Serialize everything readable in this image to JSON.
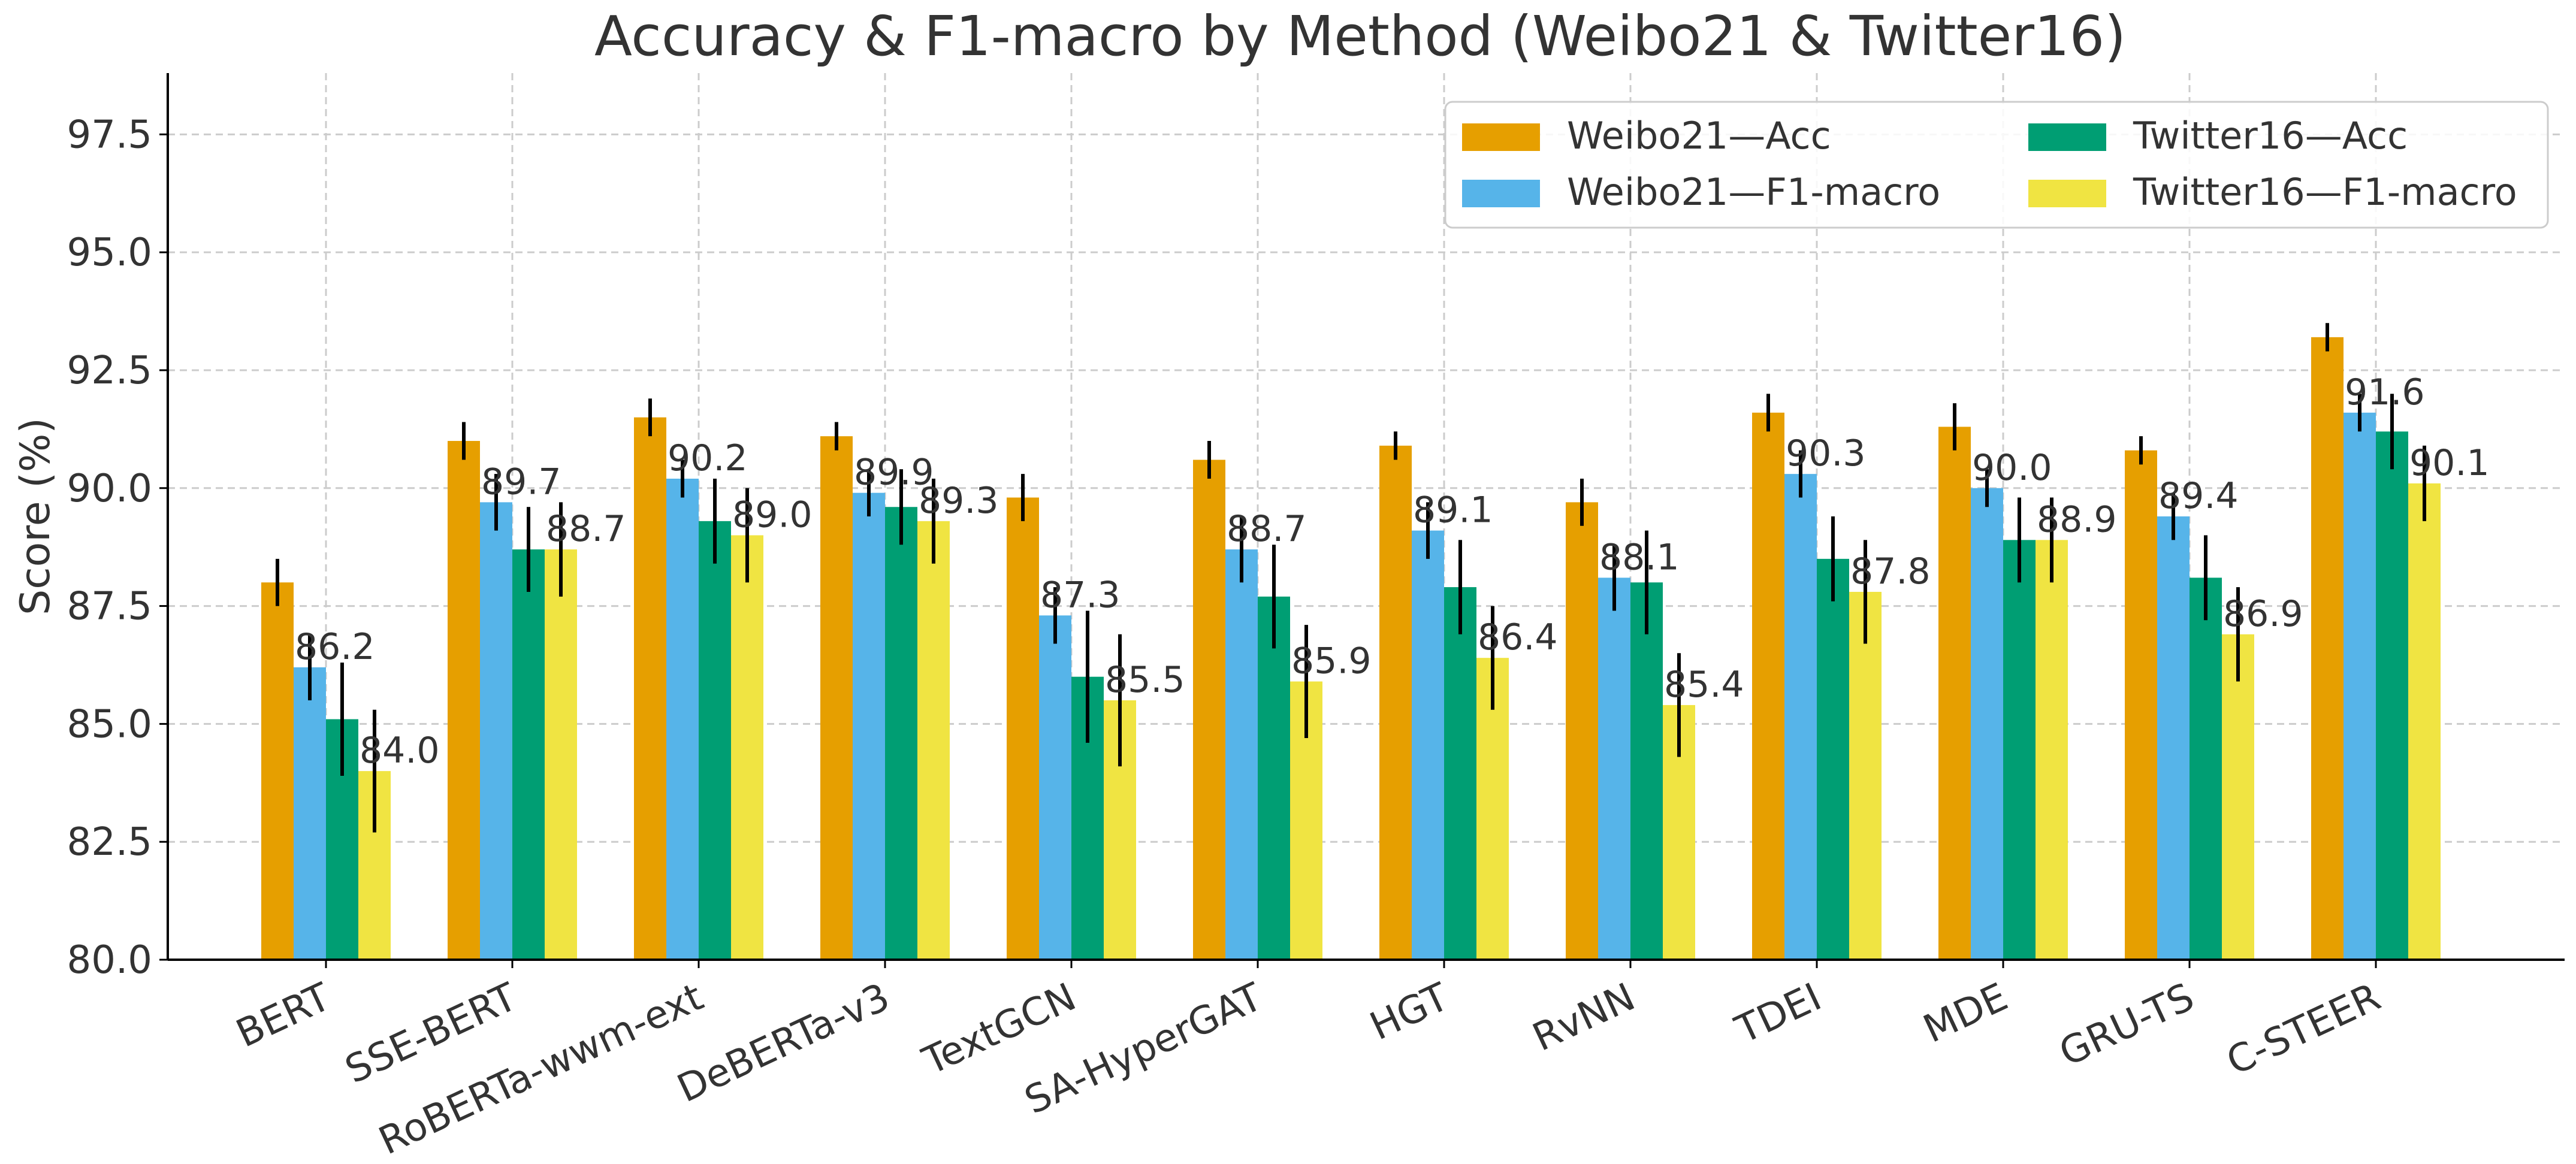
{
  "chart_data": {
    "type": "bar",
    "title": "Accuracy & F1-macro by Method (Weibo21 & Twitter16)",
    "xlabel": "",
    "ylabel": "Score (%)",
    "ylim": [
      80.0,
      98.8
    ],
    "yticks": [
      "80.0",
      "82.5",
      "85.0",
      "87.5",
      "90.0",
      "92.5",
      "95.0",
      "97.5"
    ],
    "grid": true,
    "legend_position": "top-right",
    "categories": [
      "BERT",
      "SSE-BERT",
      "RoBERTa-wwm-ext",
      "DeBERTa-v3",
      "TextGCN",
      "SA-HyperGAT",
      "HGT",
      "RvNN",
      "TDEI",
      "MDE",
      "GRU-TS",
      "C-STEER"
    ],
    "series": [
      {
        "name": "Weibo21—Acc",
        "color": "#E69F00",
        "values": [
          88.0,
          91.0,
          91.5,
          91.1,
          89.8,
          90.6,
          90.9,
          89.7,
          91.6,
          91.3,
          90.8,
          93.2
        ],
        "errors": [
          0.5,
          0.4,
          0.4,
          0.3,
          0.5,
          0.4,
          0.3,
          0.5,
          0.4,
          0.5,
          0.3,
          0.3
        ]
      },
      {
        "name": "Weibo21—F1-macro",
        "color": "#56B4E9",
        "values": [
          86.2,
          89.7,
          90.2,
          89.9,
          87.3,
          88.7,
          89.1,
          88.1,
          90.3,
          90.0,
          89.4,
          91.6
        ],
        "errors": [
          0.7,
          0.6,
          0.4,
          0.5,
          0.6,
          0.7,
          0.6,
          0.7,
          0.5,
          0.4,
          0.5,
          0.4
        ]
      },
      {
        "name": "Twitter16—Acc",
        "color": "#009E73",
        "values": [
          85.1,
          88.7,
          89.3,
          89.6,
          86.0,
          87.7,
          87.9,
          88.0,
          88.5,
          88.9,
          88.1,
          91.2
        ],
        "errors": [
          1.2,
          0.9,
          0.9,
          0.8,
          1.4,
          1.1,
          1.0,
          1.1,
          0.9,
          0.9,
          0.9,
          0.8
        ]
      },
      {
        "name": "Twitter16—F1-macro",
        "color": "#F0E442",
        "values": [
          84.0,
          88.7,
          89.0,
          89.3,
          85.5,
          85.9,
          86.4,
          85.4,
          87.8,
          88.9,
          86.9,
          90.1
        ],
        "errors": [
          1.3,
          1.0,
          1.0,
          0.9,
          1.4,
          1.2,
          1.1,
          1.1,
          1.1,
          0.9,
          1.0,
          0.8
        ]
      }
    ],
    "data_labels": {
      "Weibo21—F1-macro": [
        "86.2",
        "89.7",
        "90.2",
        "89.9",
        "87.3",
        "88.7",
        "89.1",
        "88.1",
        "90.3",
        "90.0",
        "89.4",
        "91.6"
      ],
      "Twitter16—F1-macro": [
        "84.0",
        "88.7",
        "89.0",
        "89.3",
        "85.5",
        "85.9",
        "86.4",
        "85.4",
        "87.8",
        "88.9",
        "86.9",
        "90.1"
      ]
    }
  }
}
